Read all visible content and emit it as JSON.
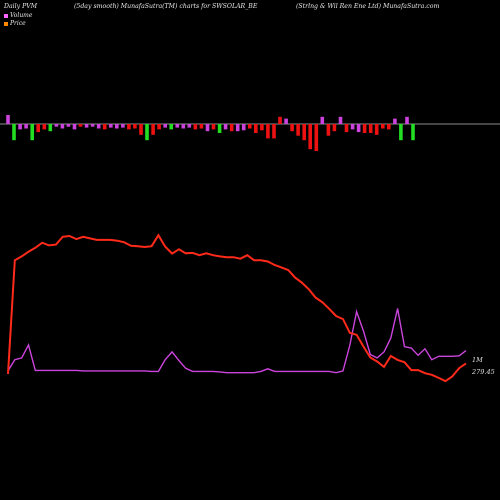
{
  "header": {
    "left": "Daily PVM",
    "middle": "(5day smooth) MunafaSutra(TM) charts for SWSOLAR_BE",
    "right": "(Strlng & Wil Ren  Ene  Ltd) MunafaSutra.com"
  },
  "legend": {
    "items": [
      {
        "label": "Volume",
        "color": "#ff66ff"
      },
      {
        "label": "Price",
        "color": "#ff8800"
      }
    ]
  },
  "end_labels": {
    "volume": "1M",
    "price": "279.45"
  },
  "colors": {
    "background": "#000000",
    "price_line": "#ff2a1a",
    "volume_line": "#cc44dd",
    "bar_up": "#22dd22",
    "bar_down": "#ee1111",
    "bar_neutral": "#cc44dd",
    "axis": "#bbbbbb"
  },
  "chart_data": {
    "type": "line",
    "x_count": 68,
    "series": [
      {
        "key": "price",
        "values": [
          300,
          590,
          600,
          612,
          622,
          635,
          628,
          630,
          650,
          652,
          644,
          650,
          646,
          642,
          642,
          642,
          640,
          636,
          627,
          626,
          624,
          626,
          654,
          625,
          607,
          618,
          608,
          609,
          603,
          608,
          603,
          600,
          598,
          598,
          594,
          603,
          590,
          590,
          587,
          578,
          572,
          565,
          546,
          533,
          516,
          495,
          483,
          466,
          448,
          440,
          405,
          400,
          370,
          342,
          332,
          318,
          346,
          336,
          330,
          310,
          310,
          302,
          298,
          290,
          282,
          294,
          315,
          327
        ]
      },
      {
        "key": "volume",
        "values": [
          0.12,
          0.55,
          0.62,
          1.12,
          0.14,
          0.14,
          0.14,
          0.14,
          0.14,
          0.14,
          0.14,
          0.12,
          0.12,
          0.12,
          0.12,
          0.12,
          0.12,
          0.12,
          0.12,
          0.12,
          0.12,
          0.1,
          0.1,
          0.55,
          0.85,
          0.52,
          0.22,
          0.1,
          0.1,
          0.1,
          0.1,
          0.08,
          0.05,
          0.05,
          0.05,
          0.05,
          0.05,
          0.1,
          0.2,
          0.1,
          0.1,
          0.1,
          0.1,
          0.1,
          0.1,
          0.1,
          0.1,
          0.1,
          0.05,
          0.12,
          1.1,
          2.4,
          1.65,
          0.75,
          0.62,
          0.85,
          1.38,
          2.52,
          1.05,
          1.0,
          0.72,
          0.97,
          0.55,
          0.68,
          0.68,
          0.68,
          0.7,
          0.9
        ]
      }
    ],
    "pvm_bars": [
      {
        "v": 1.0,
        "c": "mag"
      },
      {
        "v": -1.8,
        "c": "green"
      },
      {
        "v": -0.6,
        "c": "mag"
      },
      {
        "v": -0.5,
        "c": "mag"
      },
      {
        "v": -1.8,
        "c": "green"
      },
      {
        "v": -0.9,
        "c": "red"
      },
      {
        "v": -0.6,
        "c": "red"
      },
      {
        "v": -0.8,
        "c": "green"
      },
      {
        "v": -0.3,
        "c": "mag"
      },
      {
        "v": -0.5,
        "c": "mag"
      },
      {
        "v": -0.3,
        "c": "mag"
      },
      {
        "v": -0.6,
        "c": "mag"
      },
      {
        "v": -0.3,
        "c": "red"
      },
      {
        "v": -0.4,
        "c": "mag"
      },
      {
        "v": -0.3,
        "c": "mag"
      },
      {
        "v": -0.5,
        "c": "mag"
      },
      {
        "v": -0.6,
        "c": "red"
      },
      {
        "v": -0.4,
        "c": "mag"
      },
      {
        "v": -0.5,
        "c": "mag"
      },
      {
        "v": -0.4,
        "c": "mag"
      },
      {
        "v": -0.6,
        "c": "red"
      },
      {
        "v": -0.5,
        "c": "red"
      },
      {
        "v": -1.2,
        "c": "red"
      },
      {
        "v": -1.8,
        "c": "green"
      },
      {
        "v": -1.2,
        "c": "red"
      },
      {
        "v": -0.6,
        "c": "red"
      },
      {
        "v": -0.4,
        "c": "mag"
      },
      {
        "v": -0.6,
        "c": "green"
      },
      {
        "v": -0.4,
        "c": "mag"
      },
      {
        "v": -0.5,
        "c": "mag"
      },
      {
        "v": -0.4,
        "c": "mag"
      },
      {
        "v": -0.6,
        "c": "red"
      },
      {
        "v": -0.5,
        "c": "red"
      },
      {
        "v": -0.8,
        "c": "mag"
      },
      {
        "v": -0.6,
        "c": "red"
      },
      {
        "v": -1.0,
        "c": "green"
      },
      {
        "v": -0.6,
        "c": "mag"
      },
      {
        "v": -0.8,
        "c": "red"
      },
      {
        "v": -0.8,
        "c": "mag"
      },
      {
        "v": -0.7,
        "c": "mag"
      },
      {
        "v": -0.5,
        "c": "red"
      },
      {
        "v": -1.0,
        "c": "red"
      },
      {
        "v": -0.7,
        "c": "red"
      },
      {
        "v": -1.6,
        "c": "red"
      },
      {
        "v": -1.6,
        "c": "red"
      },
      {
        "v": 0.8,
        "c": "red"
      },
      {
        "v": 0.6,
        "c": "mag"
      },
      {
        "v": -0.8,
        "c": "red"
      },
      {
        "v": -1.3,
        "c": "red"
      },
      {
        "v": -1.8,
        "c": "red"
      },
      {
        "v": -2.8,
        "c": "red"
      },
      {
        "v": -3.0,
        "c": "red"
      },
      {
        "v": 0.8,
        "c": "mag"
      },
      {
        "v": -1.3,
        "c": "red"
      },
      {
        "v": -0.8,
        "c": "red"
      },
      {
        "v": 0.8,
        "c": "mag"
      },
      {
        "v": -0.9,
        "c": "red"
      },
      {
        "v": -0.6,
        "c": "mag"
      },
      {
        "v": -0.9,
        "c": "mag"
      },
      {
        "v": -1.0,
        "c": "red"
      },
      {
        "v": -1.0,
        "c": "red"
      },
      {
        "v": -1.2,
        "c": "red"
      },
      {
        "v": -0.5,
        "c": "red"
      },
      {
        "v": -0.6,
        "c": "red"
      },
      {
        "v": 0.6,
        "c": "mag"
      },
      {
        "v": -1.8,
        "c": "green"
      },
      {
        "v": 0.8,
        "c": "mag"
      },
      {
        "v": -1.8,
        "c": "green"
      }
    ]
  }
}
